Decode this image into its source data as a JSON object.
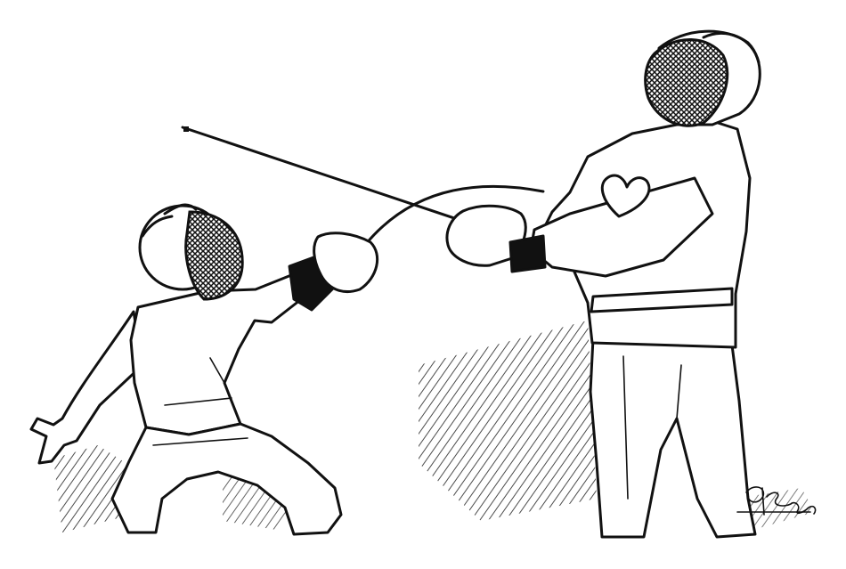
{
  "image": {
    "ink_color": "#111111",
    "paper_color": "#ffffff"
  },
  "signature": {
    "text": "GHFoulsom"
  }
}
